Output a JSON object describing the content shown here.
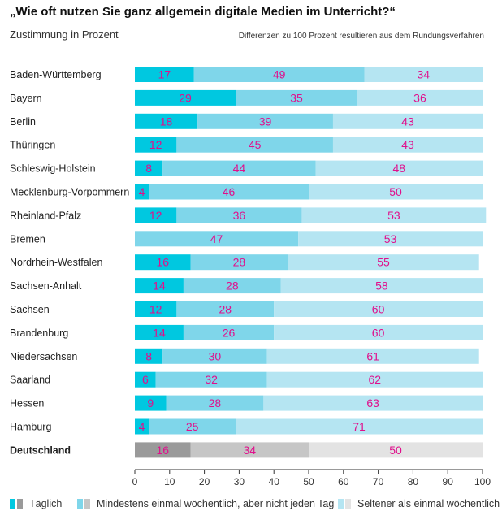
{
  "title": "„Wie oft nutzen Sie ganz allgemein digitale Medien im Unterricht?“",
  "subtitle": "Zustimmung in Prozent",
  "note": "Differenzen zu 100 Prozent resultieren aus dem Rundungsverfahren",
  "colors": {
    "daily": "#00c8e0",
    "weekly": "#7fd6ea",
    "seldom": "#b5e5f2",
    "total_daily": "#9a9a9a",
    "total_weekly": "#c6c6c6",
    "total_seldom": "#e3e3e3",
    "label": "#e0108c",
    "axis": "#333333"
  },
  "legend": [
    {
      "label": "Täglich",
      "colors": [
        "#00c8e0",
        "#9a9a9a"
      ]
    },
    {
      "label": "Mindestens einmal wöchentlich, aber nicht jeden Tag",
      "colors": [
        "#7fd6ea",
        "#c6c6c6"
      ]
    },
    {
      "label": "Seltener als einmal wöchentlich",
      "colors": [
        "#b5e5f2",
        "#e3e3e3"
      ]
    }
  ],
  "chart_data": {
    "type": "bar",
    "orientation": "horizontal",
    "stacked": true,
    "title": "„Wie oft nutzen Sie ganz allgemein digitale Medien im Unterricht?“",
    "subtitle": "Zustimmung in Prozent",
    "xlabel": "",
    "ylabel": "",
    "xlim": [
      0,
      100
    ],
    "xticks": [
      0,
      10,
      20,
      30,
      40,
      50,
      60,
      70,
      80,
      90,
      100
    ],
    "grid": false,
    "legend_position": "bottom",
    "categories": [
      "Baden-Württemberg",
      "Bayern",
      "Berlin",
      "Thüringen",
      "Schleswig-Holstein",
      "Mecklenburg-Vorpommern",
      "Rheinland-Pfalz",
      "Bremen",
      "Nordrhein-Westfalen",
      "Sachsen-Anhalt",
      "Sachsen",
      "Brandenburg",
      "Niedersachsen",
      "Saarland",
      "Hessen",
      "Hamburg",
      "Deutschland"
    ],
    "series": [
      {
        "name": "Täglich",
        "values": [
          17,
          29,
          18,
          12,
          8,
          4,
          12,
          0,
          16,
          14,
          12,
          14,
          8,
          6,
          9,
          4,
          16
        ]
      },
      {
        "name": "Mindestens einmal wöchentlich, aber nicht jeden Tag",
        "values": [
          49,
          35,
          39,
          45,
          44,
          46,
          36,
          47,
          28,
          28,
          28,
          26,
          30,
          32,
          28,
          25,
          34
        ]
      },
      {
        "name": "Seltener als einmal wöchentlich",
        "values": [
          34,
          36,
          43,
          43,
          48,
          50,
          53,
          53,
          55,
          58,
          60,
          60,
          61,
          62,
          63,
          71,
          50
        ]
      }
    ],
    "highlight_category": "Deutschland"
  }
}
